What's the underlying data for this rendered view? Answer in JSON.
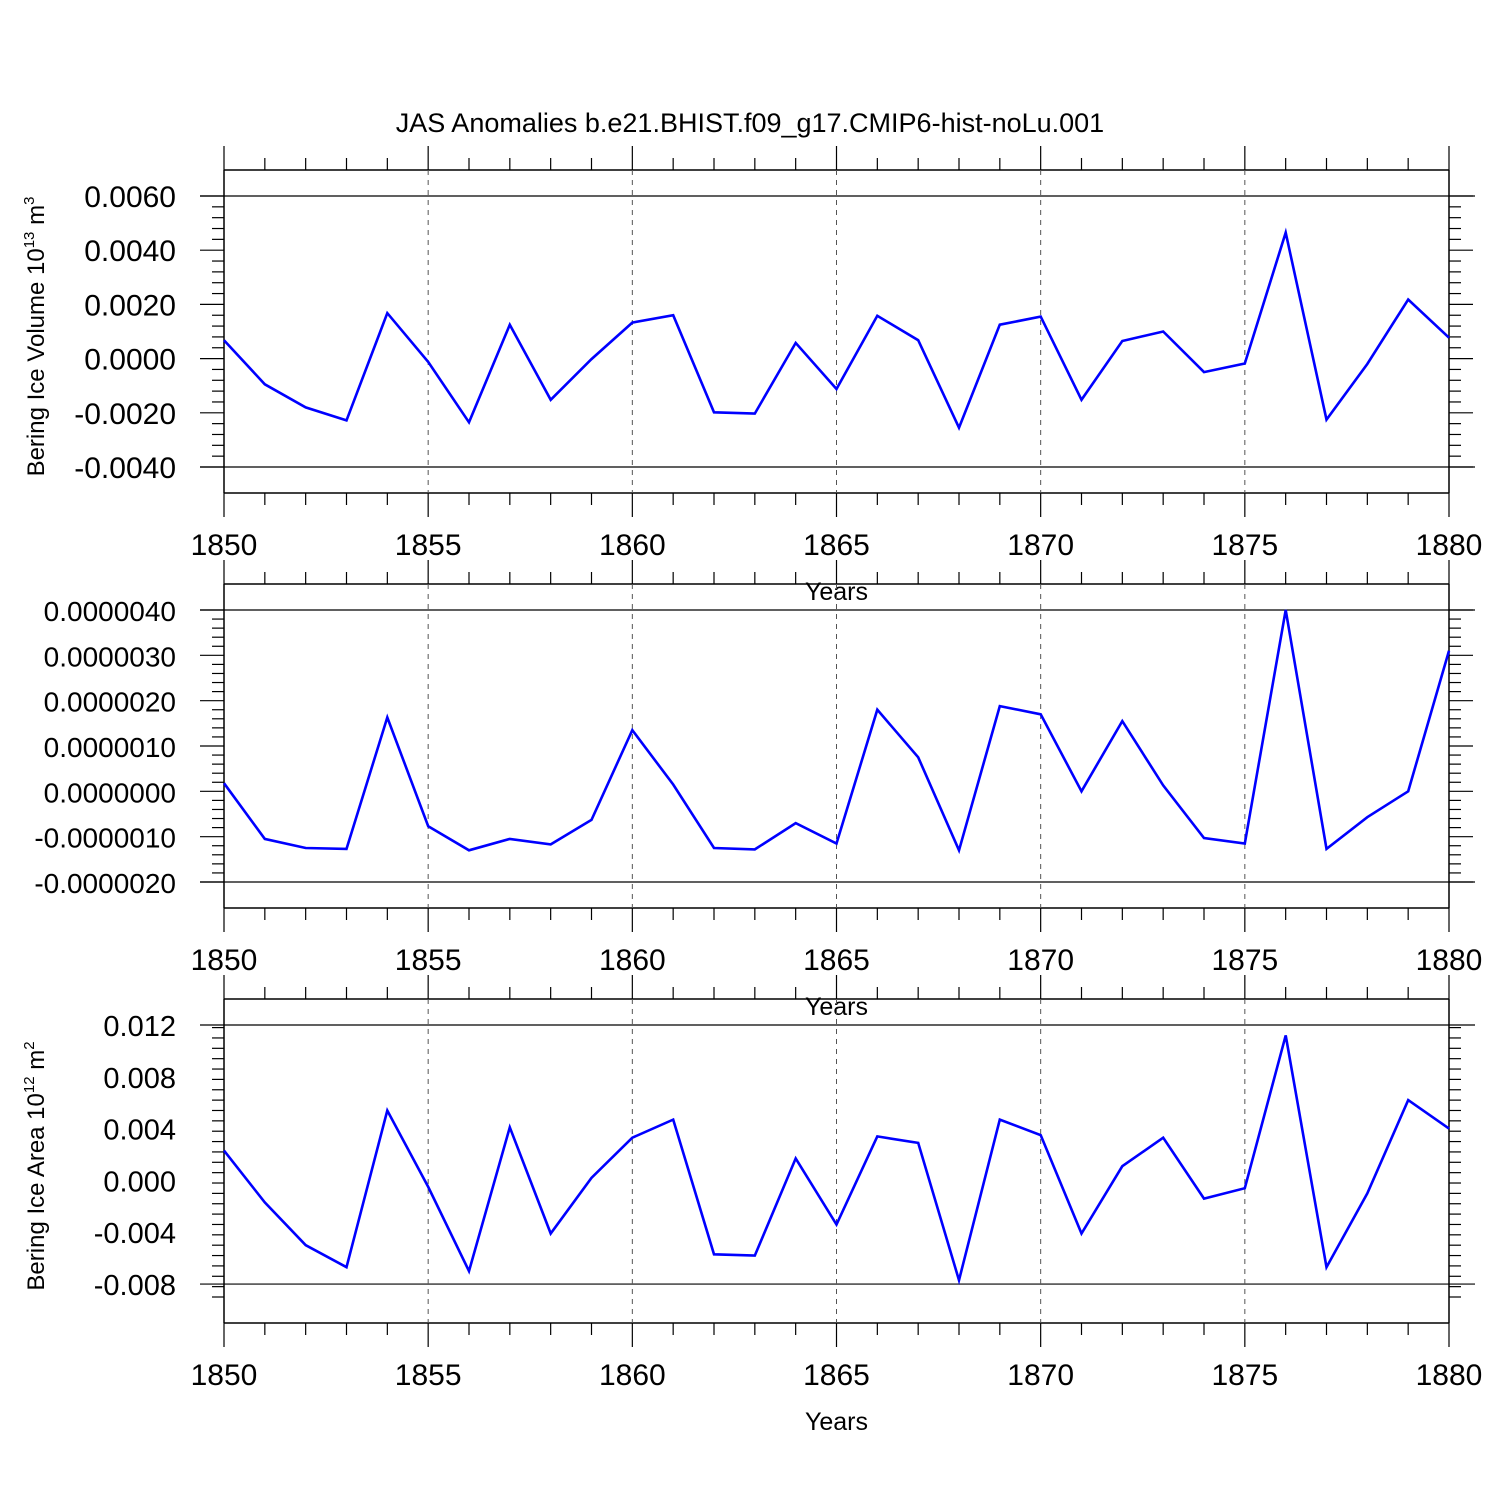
{
  "title": "JAS Anomalies b.e21.BHIST.f09_g17.CMIP6-hist-noLu.001",
  "colors": {
    "line": "#0000ff",
    "axis": "#000000",
    "grid": "#555555"
  },
  "chart_data": [
    {
      "type": "line",
      "ylabel": {
        "text": "Bering Ice Volume 10",
        "exponent": "13",
        "unit": "m",
        "unit_exponent": "3"
      },
      "xlabel": "Years",
      "xlim": [
        1850,
        1880
      ],
      "ylim": [
        -0.004,
        0.006
      ],
      "xticks": [
        "1850",
        "1855",
        "1860",
        "1865",
        "1870",
        "1875",
        "1880"
      ],
      "yticks": [
        {
          "value": -0.004,
          "label": "-0.0040"
        },
        {
          "value": -0.002,
          "label": "-0.0020"
        },
        {
          "value": 0.0,
          "label": "0.0000"
        },
        {
          "value": 0.002,
          "label": "0.0020"
        },
        {
          "value": 0.004,
          "label": "0.0040"
        },
        {
          "value": 0.006,
          "label": "0.0060"
        }
      ],
      "grid": "vertical dashed at major x ticks",
      "series": [
        {
          "x": [
            1850,
            1851,
            1852,
            1853,
            1854,
            1855,
            1856,
            1857,
            1858,
            1859,
            1860,
            1861,
            1862,
            1863,
            1864,
            1865,
            1866,
            1867,
            1868,
            1869,
            1870,
            1871,
            1872,
            1873,
            1874,
            1875,
            1876,
            1877,
            1878,
            1879,
            1880
          ],
          "values": [
            0.00068,
            -0.00095,
            -0.0018,
            -0.00228,
            0.00168,
            -0.00012,
            -0.00235,
            0.00125,
            -0.00152,
            -2e-05,
            0.00133,
            0.0016,
            -0.00198,
            -0.00203,
            0.00058,
            -0.00112,
            0.00158,
            0.00068,
            -0.00255,
            0.00125,
            0.00155,
            -0.00152,
            0.00065,
            0.001,
            -0.0005,
            -0.00018,
            0.00465,
            -0.00225,
            -0.0002,
            0.00218,
            0.00077
          ]
        }
      ]
    },
    {
      "type": "line",
      "ylabel": null,
      "xlabel": "Years",
      "xlim": [
        1850,
        1880
      ],
      "ylim": [
        -2e-06,
        4e-06
      ],
      "xticks": [
        "1850",
        "1855",
        "1860",
        "1865",
        "1870",
        "1875",
        "1880"
      ],
      "yticks": [
        {
          "value": -2e-06,
          "label": "-0.0000020"
        },
        {
          "value": -1e-06,
          "label": "-0.0000010"
        },
        {
          "value": 0.0,
          "label": "0.0000000"
        },
        {
          "value": 1e-06,
          "label": "0.0000010"
        },
        {
          "value": 2e-06,
          "label": "0.0000020"
        },
        {
          "value": 3e-06,
          "label": "0.0000030"
        },
        {
          "value": 4e-06,
          "label": "0.0000040"
        }
      ],
      "grid": "vertical dashed at major x ticks",
      "series": [
        {
          "x": [
            1850,
            1851,
            1852,
            1853,
            1854,
            1855,
            1856,
            1857,
            1858,
            1859,
            1860,
            1861,
            1862,
            1863,
            1864,
            1865,
            1866,
            1867,
            1868,
            1869,
            1870,
            1871,
            1872,
            1873,
            1874,
            1875,
            1876,
            1877,
            1878,
            1879,
            1880
          ],
          "values": [
            1.8e-07,
            -1.05e-06,
            -1.25e-06,
            -1.27e-06,
            1.63e-06,
            -7.7e-07,
            -1.3e-06,
            -1.05e-06,
            -1.17e-06,
            -6.3e-07,
            1.35e-06,
            1.5e-07,
            -1.25e-06,
            -1.28e-06,
            -7e-07,
            -1.15e-06,
            1.8e-06,
            7.5e-07,
            -1.3e-06,
            1.88e-06,
            1.7e-06,
            0.0,
            1.55e-06,
            1.3e-07,
            -1.03e-06,
            -1.15e-06,
            4e-06,
            -1.27e-06,
            -5.7e-07,
            0.0,
            3.1e-06
          ]
        }
      ]
    },
    {
      "type": "line",
      "ylabel": {
        "text": "Bering Ice Area 10",
        "exponent": "12",
        "unit": "m",
        "unit_exponent": "2"
      },
      "xlabel": "Years",
      "xlim": [
        1850,
        1880
      ],
      "ylim": [
        -0.009,
        0.012
      ],
      "xticks": [
        "1850",
        "1855",
        "1860",
        "1865",
        "1870",
        "1875",
        "1880"
      ],
      "yticks": [
        {
          "value": -0.008,
          "label": "-0.008"
        },
        {
          "value": -0.004,
          "label": "-0.004"
        },
        {
          "value": 0.0,
          "label": "0.000"
        },
        {
          "value": 0.004,
          "label": "0.004"
        },
        {
          "value": 0.008,
          "label": "0.008"
        },
        {
          "value": 0.012,
          "label": "0.012"
        }
      ],
      "grid": "vertical dashed at major x ticks",
      "series": [
        {
          "x": [
            1850,
            1851,
            1852,
            1853,
            1854,
            1855,
            1856,
            1857,
            1858,
            1859,
            1860,
            1861,
            1862,
            1863,
            1864,
            1865,
            1866,
            1867,
            1868,
            1869,
            1870,
            1871,
            1872,
            1873,
            1874,
            1875,
            1876,
            1877,
            1878,
            1879,
            1880
          ],
          "values": [
            0.0023,
            -0.0017,
            -0.005,
            -0.0067,
            0.0054,
            -0.0005,
            -0.007,
            0.0041,
            -0.0041,
            0.0002,
            0.0033,
            0.0047,
            -0.0057,
            -0.0058,
            0.0017,
            -0.0034,
            0.0034,
            0.0029,
            -0.0077,
            0.0047,
            0.0035,
            -0.0041,
            0.0011,
            0.0033,
            -0.0014,
            -0.0006,
            0.0112,
            -0.0067,
            -0.001,
            0.0062,
            0.004
          ]
        }
      ]
    }
  ]
}
